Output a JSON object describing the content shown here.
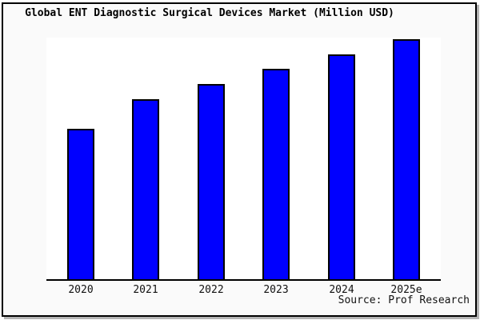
{
  "title": "Global ENT Diagnostic Surgical Devices Market (Million USD)",
  "source_note": "Source: Prof Research",
  "colors": {
    "bar_fill": "#0000ff",
    "bar_border": "#000000",
    "frame_background": "#fafafa",
    "plot_background": "#ffffff",
    "axis": "#000000",
    "frame_border": "#000000",
    "text": "#000000"
  },
  "chart_data": {
    "type": "bar",
    "title": "Global ENT Diagnostic Surgical Devices Market (Million USD)",
    "categories": [
      "2020",
      "2021",
      "2022",
      "2023",
      "2024",
      "2025e"
    ],
    "values": [
      62.6,
      75.0,
      81.4,
      87.5,
      93.6,
      100.0
    ],
    "value_units": "relative height, percent of tallest bar (2025e); y-axis has no tick labels in the chart",
    "xlabel": "",
    "ylabel": "",
    "ylim": [
      0,
      100
    ],
    "grid": false,
    "legend": false,
    "source_note": "Source: Prof Research"
  }
}
